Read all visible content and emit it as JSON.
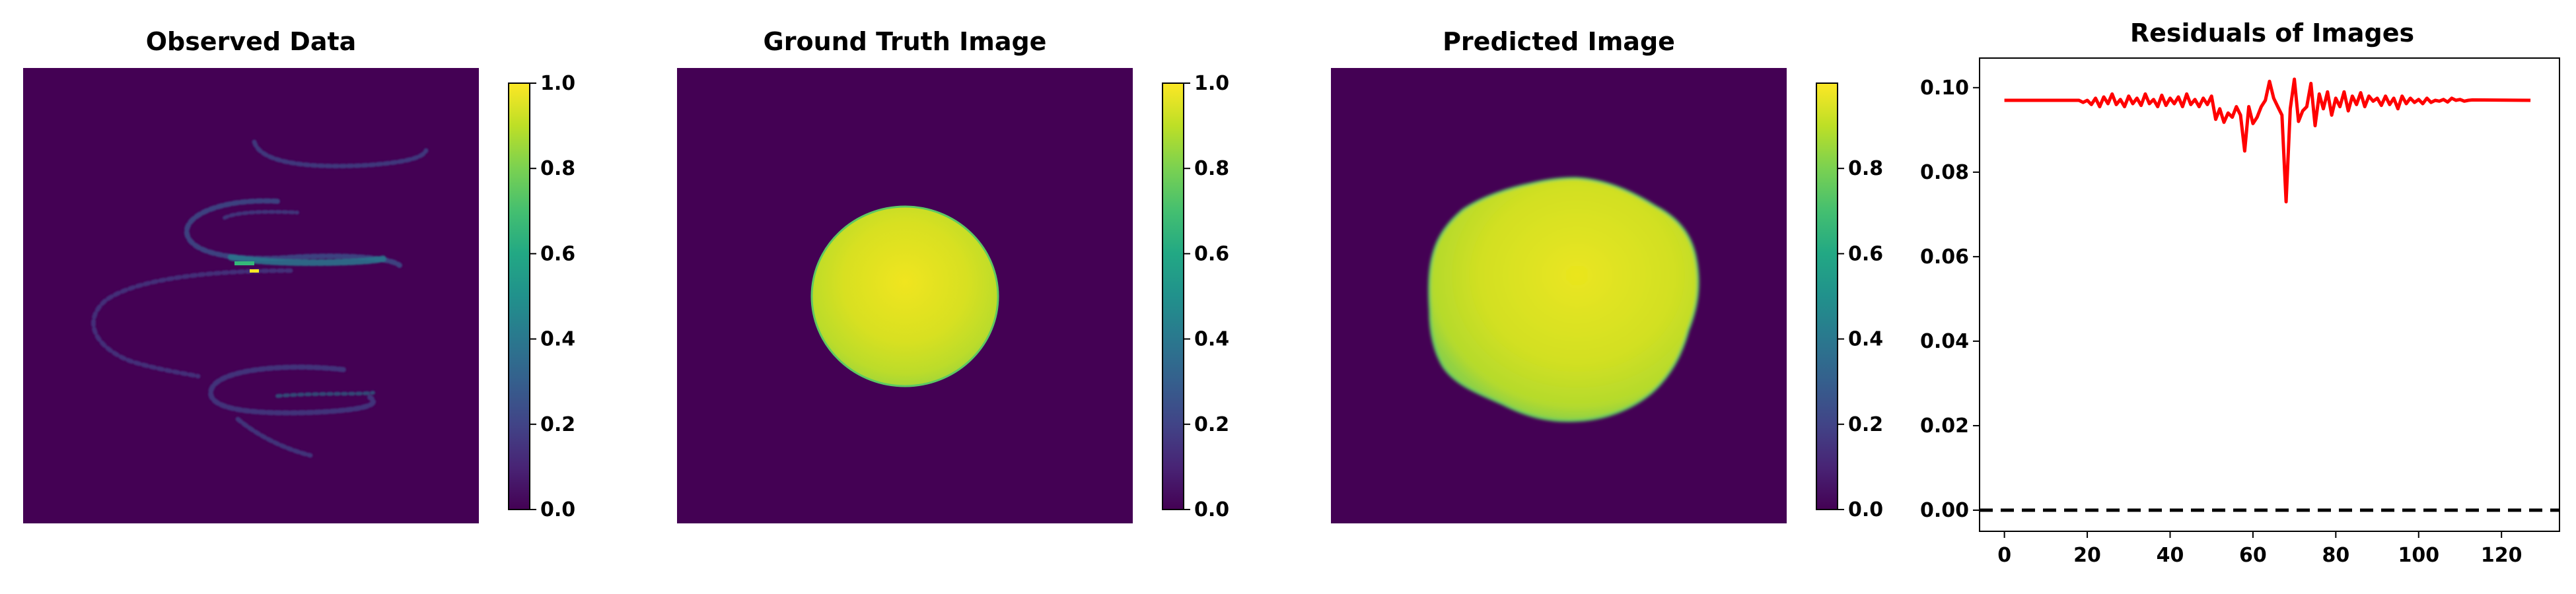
{
  "chart_data": [
    {
      "type": "heatmap",
      "title": "Observed Data",
      "colormap": "viridis",
      "colorbar": {
        "min": 0.0,
        "max": 1.0,
        "ticks": [
          "0.0",
          "0.2",
          "0.4",
          "0.6",
          "0.8",
          "1.0"
        ]
      },
      "background_value": 0.0,
      "peak_value": 1.0,
      "description": "sparse sinogram-like curved streaks on a near-zero background"
    },
    {
      "type": "heatmap",
      "title": "Ground Truth Image",
      "colormap": "viridis",
      "colorbar": {
        "min": 0.0,
        "max": 1.0,
        "ticks": [
          "0.0",
          "0.2",
          "0.4",
          "0.6",
          "0.8",
          "1.0"
        ]
      },
      "background_value": 0.0,
      "disk_value": 0.93
    },
    {
      "type": "heatmap",
      "title": "Predicted Image",
      "colormap": "viridis",
      "colorbar": {
        "min": 0.0,
        "max": 1.0,
        "ticks": [
          "0.0",
          "0.2",
          "0.4",
          "0.6",
          "0.8"
        ]
      },
      "background_value": 0.0,
      "disk_value": 0.9
    },
    {
      "type": "line",
      "title": "Residuals of Images",
      "xlim": [
        -6,
        134
      ],
      "ylim": [
        -0.005,
        0.107
      ],
      "xticks": [
        "0",
        "20",
        "40",
        "60",
        "80",
        "100",
        "120"
      ],
      "yticks": [
        "0.00",
        "0.02",
        "0.04",
        "0.06",
        "0.08",
        "0.10"
      ],
      "baseline": 0.0,
      "series": [
        {
          "color": "#ff0000",
          "x": [
            0,
            18,
            19,
            20,
            21,
            22,
            23,
            24,
            25,
            26,
            27,
            28,
            29,
            30,
            31,
            32,
            33,
            34,
            35,
            36,
            37,
            38,
            39,
            40,
            41,
            42,
            43,
            44,
            45,
            46,
            47,
            48,
            49,
            50,
            51,
            52,
            53,
            54,
            55,
            56,
            57,
            58,
            59,
            60,
            61,
            62,
            63,
            64,
            65,
            66,
            67,
            68,
            69,
            70,
            71,
            72,
            73,
            74,
            75,
            76,
            77,
            78,
            79,
            80,
            81,
            82,
            83,
            84,
            85,
            86,
            87,
            88,
            89,
            90,
            91,
            92,
            93,
            94,
            95,
            96,
            97,
            98,
            99,
            100,
            101,
            102,
            103,
            104,
            105,
            106,
            107,
            108,
            109,
            110,
            111,
            112,
            113,
            127
          ],
          "values": [
            0.097,
            0.097,
            0.0965,
            0.097,
            0.096,
            0.0975,
            0.0955,
            0.0978,
            0.0962,
            0.0985,
            0.096,
            0.0972,
            0.0955,
            0.098,
            0.0962,
            0.0975,
            0.0958,
            0.0985,
            0.0962,
            0.0972,
            0.0955,
            0.0982,
            0.0958,
            0.0975,
            0.0962,
            0.0978,
            0.0955,
            0.0985,
            0.096,
            0.0972,
            0.0955,
            0.0975,
            0.096,
            0.098,
            0.0925,
            0.095,
            0.0918,
            0.094,
            0.093,
            0.0955,
            0.0935,
            0.085,
            0.0955,
            0.0915,
            0.093,
            0.0955,
            0.097,
            0.1015,
            0.0975,
            0.0955,
            0.0935,
            0.073,
            0.095,
            0.102,
            0.092,
            0.0945,
            0.0955,
            0.101,
            0.091,
            0.0985,
            0.095,
            0.099,
            0.0935,
            0.0975,
            0.0955,
            0.099,
            0.0945,
            0.098,
            0.096,
            0.0988,
            0.0955,
            0.098,
            0.0968,
            0.0975,
            0.0958,
            0.098,
            0.096,
            0.0975,
            0.095,
            0.098,
            0.0962,
            0.0975,
            0.0965,
            0.0972,
            0.0962,
            0.0975,
            0.0965,
            0.097,
            0.0968,
            0.0972,
            0.0966,
            0.0975,
            0.097,
            0.0972,
            0.0968,
            0.097,
            0.0971,
            0.097
          ]
        }
      ]
    }
  ]
}
